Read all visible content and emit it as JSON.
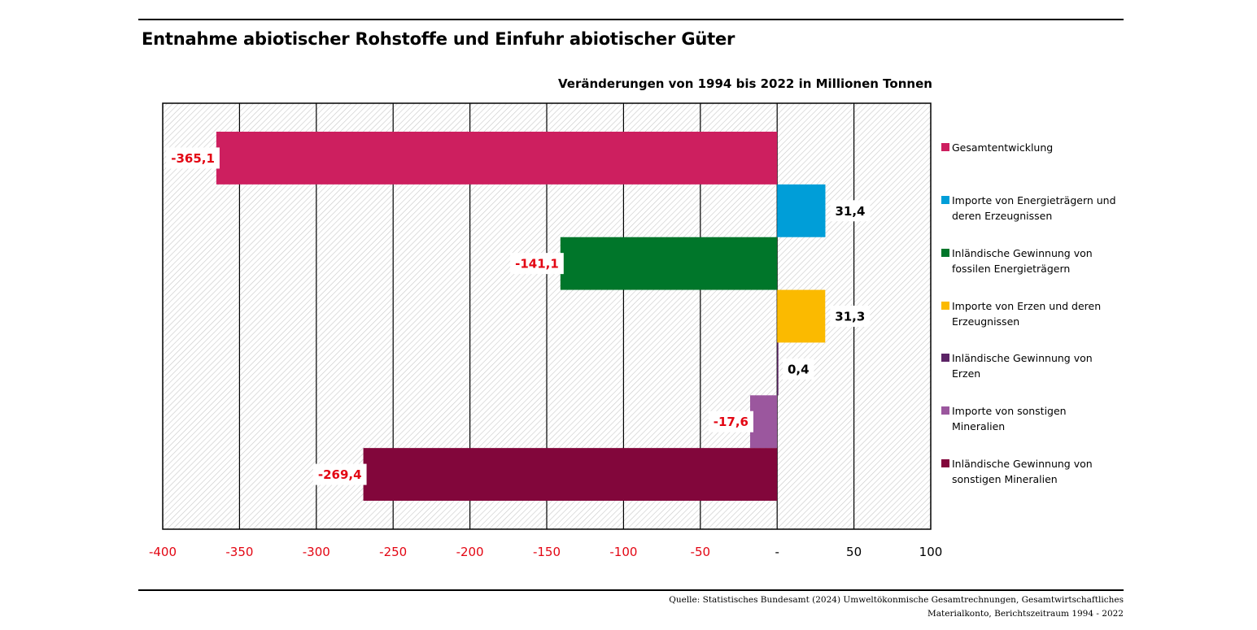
{
  "title": "Entnahme abiotischer Rohstoffe und Einfuhr abiotischer Güter",
  "source": {
    "line1": "Quelle: Statistisches Bundesamt (2024) Umweltökonmische Gesamtrechnungen, Gesamtwirtschaftliches",
    "line2": "Materialkonto, Berichtszeitraum 1994 - 2022"
  },
  "colors": {
    "negative_label": "#e30613",
    "positive_label": "#000000",
    "grid": "#000000",
    "hatch": "#c8c8c8"
  },
  "chart_data": {
    "type": "bar",
    "orientation": "horizontal",
    "title": "Veränderungen von 1994 bis 2022 in Millionen Tonnen",
    "xlim": [
      -400,
      100
    ],
    "xticks": [
      -400,
      -350,
      -300,
      -250,
      -200,
      -150,
      -100,
      -50,
      0,
      50,
      100
    ],
    "xtick_labels": [
      "-400",
      "-350",
      "-300",
      "-250",
      "-200",
      "-150",
      "-100",
      "-50",
      "-",
      "50",
      "100"
    ],
    "grid": true,
    "legend_position": "right",
    "bars": [
      {
        "name": "Gesamtentwicklung",
        "legend": [
          "Gesamtentwicklung"
        ],
        "value": -365.1,
        "label": "-365,1",
        "color": "#cd1f5f"
      },
      {
        "name": "Importe von Energieträgern und deren Erzeugnissen",
        "legend": [
          "Importe von Energieträgern und",
          "deren Erzeugnissen"
        ],
        "value": 31.4,
        "label": "31,4",
        "color": "#009ed8"
      },
      {
        "name": "Inländische Gewinnung von fossilen Energieträgern",
        "legend": [
          "Inländische Gewinnung von",
          "fossilen Energieträgern"
        ],
        "value": -141.1,
        "label": "-141,1",
        "color": "#00762a"
      },
      {
        "name": "Importe von Erzen und deren Erzeugnissen",
        "legend": [
          "Importe von Erzen und deren",
          "Erzeugnissen"
        ],
        "value": 31.3,
        "label": "31,3",
        "color": "#fbba00"
      },
      {
        "name": "Inländische Gewinnung von Erzen",
        "legend": [
          "Inländische Gewinnung von",
          "Erzen"
        ],
        "value": 0.4,
        "label": "0,4",
        "color": "#5c2466"
      },
      {
        "name": "Importe von sonstigen Mineralien",
        "legend": [
          "Importe von sonstigen",
          "Mineralien"
        ],
        "value": -17.6,
        "label": "-17,6",
        "color": "#9b579e"
      },
      {
        "name": "Inländische Gewinnung von sonstigen Mineralien",
        "legend": [
          "Inländische Gewinnung von",
          "sonstigen Mineralien"
        ],
        "value": -269.4,
        "label": "-269,4",
        "color": "#82063b"
      }
    ]
  }
}
